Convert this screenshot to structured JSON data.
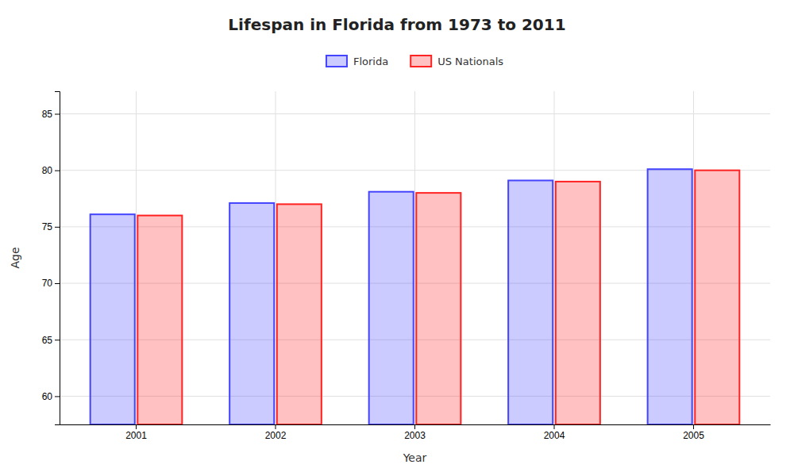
{
  "chart_data": {
    "type": "bar",
    "title": "Lifespan in Florida from 1973 to 2011",
    "x_label": "Year",
    "y_label": "Age",
    "categories": [
      "2001",
      "2002",
      "2003",
      "2004",
      "2005"
    ],
    "series": [
      {
        "name": "Florida",
        "color": "#4444ff",
        "values": [
          76.1,
          77.1,
          78.1,
          79.1,
          80.1
        ]
      },
      {
        "name": "US Nationals",
        "color": "#ff2222",
        "values": [
          76.0,
          77.0,
          78.0,
          79.0,
          80.0
        ]
      }
    ],
    "ylim": [
      57.5,
      87
    ],
    "yticks": [
      60,
      65,
      70,
      75,
      80,
      85
    ],
    "grid": true,
    "legend": "top"
  }
}
